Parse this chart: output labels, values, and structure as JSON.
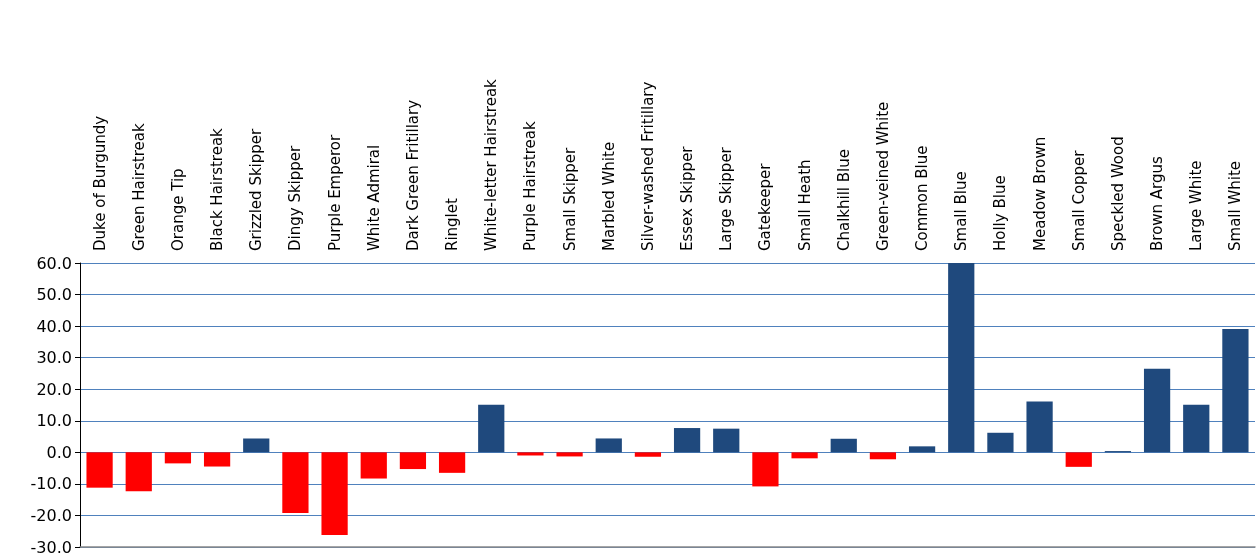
{
  "chart_data": {
    "type": "bar",
    "categories": [
      "Duke of Burgundy",
      "Green Hairstreak",
      "Orange Tip",
      "Black Hairstreak",
      "Grizzled Skipper",
      "Dingy Skipper",
      "Purple Emperor",
      "White Admiral",
      "Dark Green Fritillary",
      "Ringlet",
      "White-letter Hairstreak",
      "Purple Hairstreak",
      "Small Skipper",
      "Marbled White",
      "Silver-washed Fritillary",
      "Essex Skipper",
      "Large Skipper",
      "Gatekeeper",
      "Small Heath",
      "Chalkhill Blue",
      "Green-veined White",
      "Common Blue",
      "Small Blue",
      "Holly Blue",
      "Meadow Brown",
      "Small Copper",
      "Speckled Wood",
      "Brown Argus",
      "Large White",
      "Small White"
    ],
    "values": [
      -11.2,
      -12.3,
      -3.5,
      -4.5,
      4.4,
      -19.2,
      -26.2,
      -8.3,
      -5.3,
      -6.5,
      15.1,
      -1.0,
      -1.3,
      4.4,
      -1.4,
      7.7,
      7.5,
      -10.8,
      -1.9,
      4.3,
      -2.2,
      1.9,
      60,
      6.2,
      16.1,
      -4.6,
      0.4,
      26.5,
      15.1,
      39.1
    ],
    "colors": [
      "#ff0000",
      "#ff0000",
      "#ff0000",
      "#ff0000",
      "#1f497d",
      "#ff0000",
      "#ff0000",
      "#ff0000",
      "#ff0000",
      "#ff0000",
      "#1f497d",
      "#ff0000",
      "#ff0000",
      "#1f497d",
      "#ff0000",
      "#1f497d",
      "#1f497d",
      "#ff0000",
      "#ff0000",
      "#1f497d",
      "#ff0000",
      "#1f497d",
      "#1f497d",
      "#1f497d",
      "#1f497d",
      "#ff0000",
      "#1f497d",
      "#1f497d",
      "#1f497d",
      "#1f497d"
    ],
    "ylim": [
      -30,
      60
    ],
    "yticks": [
      {
        "value": -30,
        "label": "-30.0"
      },
      {
        "value": -20,
        "label": "-20.0"
      },
      {
        "value": -10,
        "label": "-10.0"
      },
      {
        "value": 0,
        "label": "0.0"
      },
      {
        "value": 10,
        "label": "10.0"
      },
      {
        "value": 20,
        "label": "20.0"
      },
      {
        "value": 30,
        "label": "30.0"
      },
      {
        "value": 40,
        "label": "40.0"
      },
      {
        "value": 50,
        "label": "50.0"
      },
      {
        "value": 60,
        "label": "60.0"
      }
    ],
    "grid": "y"
  }
}
